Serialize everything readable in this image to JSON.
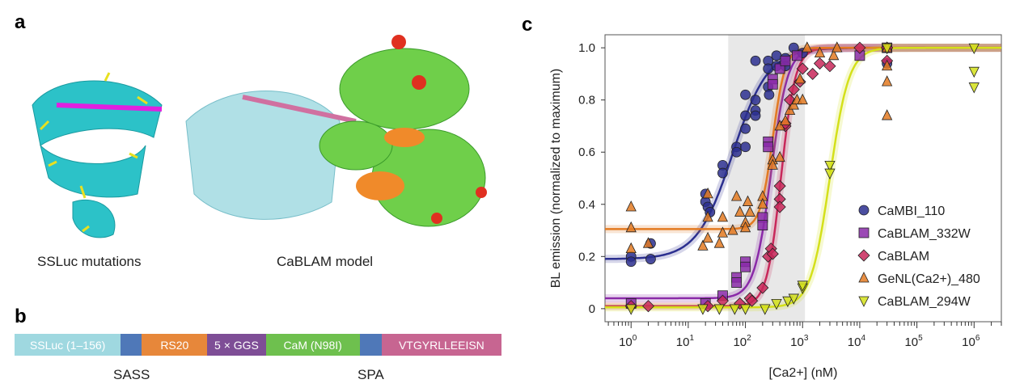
{
  "panels": {
    "a": "a",
    "b": "b",
    "c": "c"
  },
  "panel_a": {
    "left_caption": "SSLuc mutations",
    "right_caption": "CaBLAM model"
  },
  "panel_b": {
    "segments": [
      {
        "label": "SSLuc (1–156)",
        "color": "#9fd8e0",
        "units": 131
      },
      {
        "label": "",
        "color": "#4f78b8",
        "units": 26
      },
      {
        "label": "RS20",
        "color": "#e7873a",
        "units": 81
      },
      {
        "label": "5 × GGS",
        "color": "#7e4e96",
        "units": 72
      },
      {
        "label": "CaM (N98I)",
        "color": "#6ec04e",
        "units": 116
      },
      {
        "label": "",
        "color": "#4f78b8",
        "units": 27
      },
      {
        "label": "VTGYRLLEEISN",
        "color": "#c76591",
        "units": 148
      }
    ],
    "annotations": [
      "SASS",
      "SPA"
    ]
  },
  "chart_data": {
    "type": "scatter",
    "xlabel": "[Ca2+] (nM)",
    "ylabel": "BL emission (normalized to maximum)",
    "xscale": "log",
    "xlim": [
      0.35,
      3000000
    ],
    "ylim": [
      -0.05,
      1.05
    ],
    "xticks": [
      {
        "v": 1,
        "e": "0"
      },
      {
        "v": 10,
        "e": "1"
      },
      {
        "v": 100,
        "e": "2"
      },
      {
        "v": 1000,
        "e": "3"
      },
      {
        "v": 10000,
        "e": "4"
      },
      {
        "v": 100000,
        "e": "5"
      },
      {
        "v": 1000000,
        "e": "6"
      }
    ],
    "xtick_base": "10",
    "yticks": [
      {
        "v": 0,
        "l": "0"
      },
      {
        "v": 0.2,
        "l": "0.2"
      },
      {
        "v": 0.4,
        "l": "0.4"
      },
      {
        "v": 0.6,
        "l": "0.6"
      },
      {
        "v": 0.8,
        "l": "0.8"
      },
      {
        "v": 1.0,
        "l": "1.0"
      }
    ],
    "shaded_range": [
      50,
      1100
    ],
    "legend_position": "bottom-right",
    "series": [
      {
        "name": "CaMBI_110",
        "marker": "circle",
        "color": "#2b2f8f",
        "fit": {
          "bottom": 0.19,
          "top": 1.0,
          "ec50": 60,
          "hill": 1.4
        },
        "points": [
          [
            1,
            0.2
          ],
          [
            1,
            0.18
          ],
          [
            2.2,
            0.25
          ],
          [
            2.2,
            0.19
          ],
          [
            20,
            0.44
          ],
          [
            20,
            0.41
          ],
          [
            22,
            0.39
          ],
          [
            24,
            0.37
          ],
          [
            40,
            0.55
          ],
          [
            40,
            0.52
          ],
          [
            70,
            0.62
          ],
          [
            70,
            0.6
          ],
          [
            100,
            0.82
          ],
          [
            100,
            0.74
          ],
          [
            100,
            0.69
          ],
          [
            100,
            0.62
          ],
          [
            150,
            0.8
          ],
          [
            150,
            0.76
          ],
          [
            150,
            0.74
          ],
          [
            150,
            0.95
          ],
          [
            250,
            0.95
          ],
          [
            250,
            0.92
          ],
          [
            250,
            0.85
          ],
          [
            260,
            0.82
          ],
          [
            350,
            0.97
          ],
          [
            350,
            0.93
          ],
          [
            500,
            0.96
          ],
          [
            500,
            0.93
          ],
          [
            700,
            1.0
          ],
          [
            1000,
            0.98
          ],
          [
            30000,
            0.94
          ],
          [
            30000,
            1.0
          ]
        ]
      },
      {
        "name": "CaBLAM_332W",
        "marker": "square",
        "color": "#8a2aa8",
        "fit": {
          "bottom": 0.04,
          "top": 1.0,
          "ec50": 280,
          "hill": 3
        },
        "points": [
          [
            1,
            0.02
          ],
          [
            20,
            0.02
          ],
          [
            40,
            0.05
          ],
          [
            70,
            0.12
          ],
          [
            70,
            0.1
          ],
          [
            100,
            0.18
          ],
          [
            100,
            0.16
          ],
          [
            200,
            0.35
          ],
          [
            200,
            0.32
          ],
          [
            250,
            0.64
          ],
          [
            250,
            0.62
          ],
          [
            300,
            0.88
          ],
          [
            300,
            0.86
          ],
          [
            400,
            0.92
          ],
          [
            500,
            0.95
          ],
          [
            800,
            0.97
          ],
          [
            10000,
            0.97
          ],
          [
            30000,
            1.0
          ]
        ]
      },
      {
        "name": "CaBLAM",
        "marker": "diamond",
        "color": "#c8285a",
        "fit": {
          "bottom": 0.01,
          "top": 1.0,
          "ec50": 420,
          "hill": 3.5
        },
        "points": [
          [
            1,
            0.01
          ],
          [
            2,
            0.01
          ],
          [
            22,
            0.01
          ],
          [
            40,
            0.03
          ],
          [
            80,
            0.02
          ],
          [
            120,
            0.04
          ],
          [
            130,
            0.03
          ],
          [
            200,
            0.08
          ],
          [
            250,
            0.2
          ],
          [
            280,
            0.23
          ],
          [
            300,
            0.21
          ],
          [
            400,
            0.47
          ],
          [
            400,
            0.42
          ],
          [
            400,
            0.39
          ],
          [
            500,
            0.7
          ],
          [
            500,
            0.71
          ],
          [
            600,
            0.8
          ],
          [
            700,
            0.84
          ],
          [
            900,
            0.87
          ],
          [
            1000,
            0.92
          ],
          [
            1500,
            0.9
          ],
          [
            2000,
            0.94
          ],
          [
            3000,
            0.93
          ],
          [
            10000,
            1.0
          ],
          [
            30000,
            1.0
          ],
          [
            30000,
            0.95
          ]
        ]
      },
      {
        "name": "GeNL(Ca2+)_480",
        "marker": "triangle-up",
        "color": "#e37a22",
        "fit": {
          "bottom": 0.305,
          "top": 1.0,
          "ec50": 300,
          "hill": 4
        },
        "points": [
          [
            1,
            0.39
          ],
          [
            1,
            0.31
          ],
          [
            1,
            0.23
          ],
          [
            2,
            0.25
          ],
          [
            18,
            0.24
          ],
          [
            22,
            0.44
          ],
          [
            22,
            0.35
          ],
          [
            22,
            0.27
          ],
          [
            35,
            0.25
          ],
          [
            40,
            0.35
          ],
          [
            40,
            0.29
          ],
          [
            60,
            0.3
          ],
          [
            70,
            0.43
          ],
          [
            80,
            0.37
          ],
          [
            100,
            0.33
          ],
          [
            100,
            0.31
          ],
          [
            110,
            0.41
          ],
          [
            120,
            0.37
          ],
          [
            200,
            0.43
          ],
          [
            200,
            0.4
          ],
          [
            300,
            0.57
          ],
          [
            300,
            0.55
          ],
          [
            400,
            0.7
          ],
          [
            400,
            0.58
          ],
          [
            500,
            0.72
          ],
          [
            600,
            0.76
          ],
          [
            700,
            0.78
          ],
          [
            800,
            0.8
          ],
          [
            900,
            0.88
          ],
          [
            1000,
            0.8
          ],
          [
            1200,
            1.0
          ],
          [
            2000,
            0.98
          ],
          [
            3500,
            0.97
          ],
          [
            4000,
            1.0
          ],
          [
            30000,
            1.0
          ],
          [
            30000,
            0.87
          ],
          [
            30000,
            0.74
          ],
          [
            30000,
            0.93
          ]
        ]
      },
      {
        "name": "CaBLAM_294W",
        "marker": "triangle-down",
        "color": "#d4e01a",
        "fit": {
          "bottom": 0.005,
          "top": 1.0,
          "ec50": 3000,
          "hill": 2.6
        },
        "points": [
          [
            1,
            0.0
          ],
          [
            18,
            0.0
          ],
          [
            35,
            0.0
          ],
          [
            65,
            0.0
          ],
          [
            100,
            0.0
          ],
          [
            220,
            0.0
          ],
          [
            350,
            0.02
          ],
          [
            550,
            0.03
          ],
          [
            700,
            0.04
          ],
          [
            1000,
            0.08
          ],
          [
            1000,
            0.09
          ],
          [
            3000,
            0.55
          ],
          [
            3000,
            0.52
          ],
          [
            30000,
            1.0
          ],
          [
            1000000,
            1.0
          ],
          [
            1000000,
            0.91
          ],
          [
            1000000,
            0.85
          ]
        ]
      }
    ]
  }
}
